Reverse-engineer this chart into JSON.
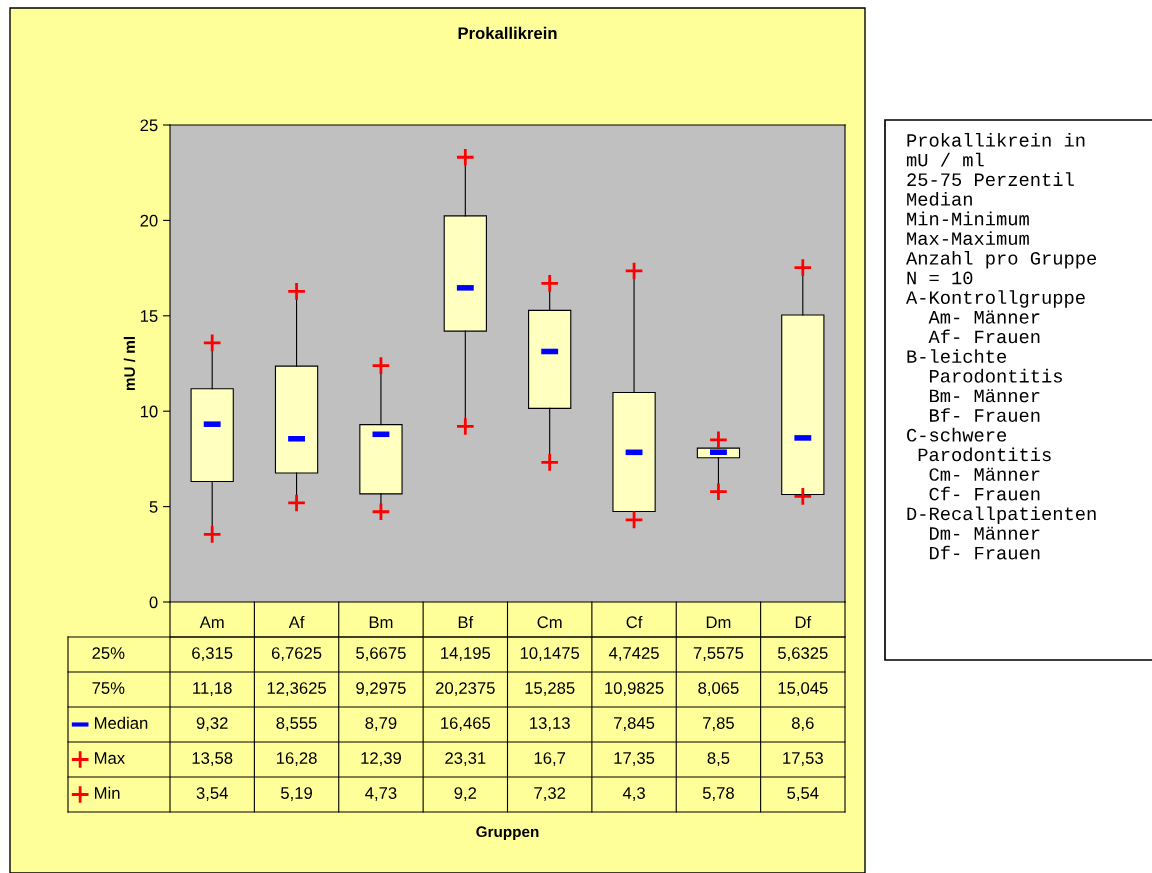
{
  "chart_data": {
    "type": "box",
    "title": "Prokallikrein",
    "ylabel": "mU / ml",
    "categories": [
      "Am",
      "Af",
      "Bm",
      "Bf",
      "Cm",
      "Cf",
      "Dm",
      "Df"
    ],
    "series": [
      {
        "color": "#ffffc0",
        "value_labels": [
          [
            "6,315",
            "11,18",
            "9,32",
            "13,58",
            "3,54"
          ],
          [
            "6,7625",
            "12,3625",
            "8,555",
            "16,28",
            "5,19"
          ],
          [
            "5,6675",
            "9,2975",
            "8,79",
            "12,39",
            "4,73"
          ],
          [
            "14,195",
            "20,2375",
            "16,465",
            "23,31",
            "9,2"
          ],
          [
            "10,1475",
            "15,285",
            "13,13",
            "16,7",
            "7,32"
          ],
          [
            "4,7425",
            "10,9825",
            "7,845",
            "17,35",
            "4,3"
          ],
          [
            "7,5575",
            "8,065",
            "7,85",
            "8,5",
            "5,78"
          ],
          [
            "5,6325",
            "15,045",
            "8,6",
            "17,53",
            "5,54"
          ]
        ],
        "boxes": [
          {
            "low": 3.54,
            "q1": 6.315,
            "median": 9.32,
            "q3": 11.18,
            "high": 13.58
          },
          {
            "low": 5.19,
            "q1": 6.7625,
            "median": 8.555,
            "q3": 12.3625,
            "high": 16.28
          },
          {
            "low": 4.73,
            "q1": 5.6675,
            "median": 8.79,
            "q3": 9.2975,
            "high": 12.39
          },
          {
            "low": 9.2,
            "q1": 14.195,
            "median": 16.465,
            "q3": 20.2375,
            "high": 23.31
          },
          {
            "low": 7.32,
            "q1": 10.1475,
            "median": 13.13,
            "q3": 15.285,
            "high": 16.7
          },
          {
            "low": 4.3,
            "q1": 4.7425,
            "median": 7.845,
            "q3": 10.9825,
            "high": 17.35
          },
          {
            "low": 5.78,
            "q1": 7.5575,
            "median": 7.85,
            "q3": 8.065,
            "high": 8.5
          },
          {
            "low": 5.54,
            "q1": 5.6325,
            "median": 8.6,
            "q3": 15.045,
            "high": 17.53
          }
        ]
      }
    ],
    "ylim": [
      0,
      25
    ],
    "yticks": [
      0,
      5,
      10,
      15,
      20,
      25
    ],
    "grid": false,
    "annotations": [
      "Prokallikrein in\nmU / ml\n25-75 Perzentil\nMedian\nMin-Minimum\nMax-Maximum\nAnzahl pro Gruppe\nN = 10\nA-Kontrollgruppe\n  Am- Männer\n  Af- Frauen\nB-leichte\n  Parodontitis\n  Bm- Männer\n  Bf- Frauen\nC-schwere\n Parodontitis\n  Cm- Männer\n  Cf- Frauen\nD-Recallpatienten\n  Dm- Männer\n  Df- Frauen",
      "25%",
      "75%",
      "Median",
      "Max",
      "Min",
      "Gruppen"
    ]
  }
}
